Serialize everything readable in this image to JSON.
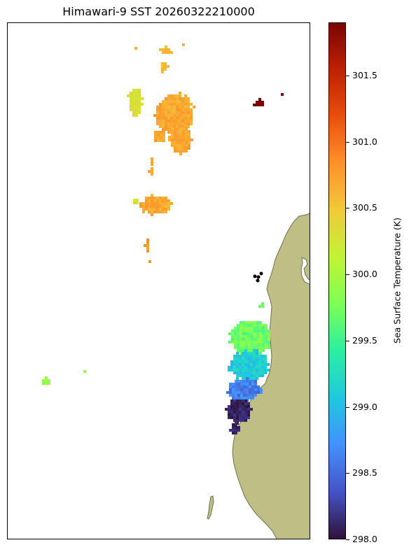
{
  "title": "Himawari-9 SST 20260322210000",
  "colorbar": {
    "label": "Sea Surface Temperature (K)",
    "min": 298.0,
    "max": 301.9,
    "ticks": [
      "298.0",
      "298.5",
      "299.0",
      "299.5",
      "300.0",
      "300.5",
      "301.0",
      "301.5"
    ],
    "colormap": "turbo",
    "stops": [
      "#30123b",
      "#4454c4",
      "#4490fe",
      "#1fc8de",
      "#29efa2",
      "#7dff56",
      "#c1f334",
      "#f1ca3a",
      "#fe922a",
      "#ea4f0d",
      "#be2102",
      "#7a0403"
    ]
  },
  "map": {
    "land_color": "#bfbf85",
    "land_edge_color": "#6e6e50",
    "station_marker_color": "#000000",
    "sst_patches_K": [
      {
        "region": "north-central cluster",
        "value_K": 300.7
      },
      {
        "region": "upper offshore cells",
        "value_K": 300.6
      },
      {
        "region": "west edge of north cluster",
        "value_K": 300.3
      },
      {
        "region": "middle cluster",
        "value_K": 300.7
      },
      {
        "region": "small southern cells",
        "value_K": 300.8
      },
      {
        "region": "far north-east cells",
        "value_K": 301.9
      },
      {
        "region": "coastal north",
        "value_K": 299.7
      },
      {
        "region": "coastal middle",
        "value_K": 299.1
      },
      {
        "region": "coastal south",
        "value_K": 298.6
      },
      {
        "region": "coastal far south",
        "value_K": 298.1
      },
      {
        "region": "western isolated cells",
        "value_K": 299.9
      }
    ]
  }
}
